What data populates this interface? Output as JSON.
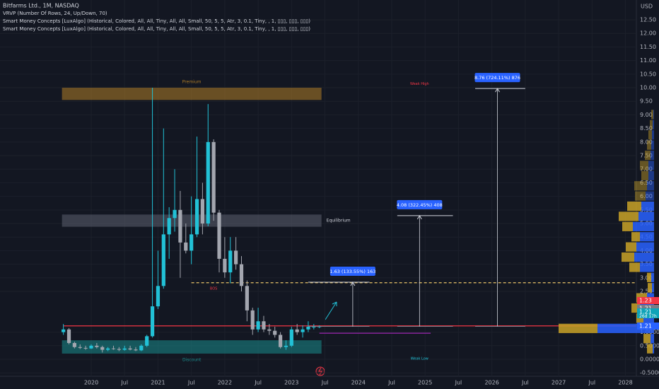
{
  "chart_data": {
    "type": "candlestick",
    "currency": "USD",
    "legend_lines": [
      "Bitfarms Ltd., 1M, NASDAQ",
      "VRVP (Number Of Rows, 24, Up/Down, 70)",
      "Smart Money Concepts [LuxAlgo] (Historical, Colored, All, All, Tiny, All, All, Small, 50, 5, 5, Atr, 3, 0.1, Tiny, , 1, ▯▯▯, ▯▯▯, ▯▯▯)",
      "Smart Money Concepts [LuxAlgo] (Historical, Colored, All, All, Tiny, All, All, Small, 50, 5, 5, Atr, 3, 0.1, Tiny, , 1, ▯▯▯, ▯▯▯, ▯▯▯)"
    ],
    "up_color": "#22c1d6",
    "down_color": "#a3a6af",
    "x": [
      "2019-08",
      "2019-09",
      "2019-10",
      "2019-11",
      "2019-12",
      "2020-01",
      "2020-02",
      "2020-03",
      "2020-04",
      "2020-05",
      "2020-06",
      "2020-07",
      "2020-08",
      "2020-09",
      "2020-10",
      "2020-11",
      "2020-12",
      "2021-01",
      "2021-02",
      "2021-03",
      "2021-04",
      "2021-05",
      "2021-06",
      "2021-07",
      "2021-08",
      "2021-09",
      "2021-10",
      "2021-11",
      "2021-12",
      "2022-01",
      "2022-02",
      "2022-03",
      "2022-04",
      "2022-05",
      "2022-06",
      "2022-07",
      "2022-08",
      "2022-09",
      "2022-10",
      "2022-11",
      "2022-12",
      "2023-01",
      "2023-02",
      "2023-03",
      "2023-04",
      "2023-05",
      "2023-06"
    ],
    "open": [
      1.0,
      1.1,
      0.6,
      0.45,
      0.42,
      0.4,
      0.5,
      0.45,
      0.35,
      0.4,
      0.38,
      0.35,
      0.4,
      0.36,
      0.33,
      0.5,
      0.85,
      1.95,
      2.7,
      4.6,
      5.2,
      5.5,
      4.3,
      4.0,
      4.6,
      5.9,
      5.0,
      8.0,
      5.4,
      3.7,
      3.2,
      4.0,
      3.5,
      2.7,
      1.8,
      1.1,
      1.4,
      1.1,
      1.05,
      0.9,
      0.45,
      0.5,
      1.1,
      1.0,
      1.1,
      1.2,
      1.2
    ],
    "high": [
      1.3,
      1.15,
      0.65,
      0.55,
      0.5,
      0.55,
      0.6,
      0.5,
      0.45,
      0.5,
      0.45,
      0.5,
      0.5,
      0.45,
      0.55,
      0.9,
      10.0,
      4.0,
      8.5,
      5.6,
      7.0,
      6.2,
      5.0,
      6.0,
      8.2,
      6.5,
      9.4,
      8.1,
      5.5,
      4.5,
      4.5,
      4.5,
      3.8,
      2.9,
      1.9,
      1.9,
      1.6,
      1.3,
      1.2,
      1.0,
      0.7,
      1.2,
      1.3,
      1.25,
      1.4,
      1.3,
      1.25
    ],
    "low": [
      0.9,
      0.55,
      0.4,
      0.38,
      0.35,
      0.38,
      0.4,
      0.25,
      0.3,
      0.35,
      0.3,
      0.32,
      0.33,
      0.3,
      0.3,
      0.45,
      0.8,
      1.85,
      2.6,
      3.7,
      4.7,
      3.0,
      3.9,
      3.5,
      4.5,
      4.6,
      4.9,
      5.1,
      3.2,
      3.0,
      2.8,
      3.3,
      2.5,
      1.4,
      0.9,
      1.0,
      1.0,
      0.9,
      0.8,
      0.4,
      0.35,
      0.45,
      0.9,
      0.8,
      1.0,
      1.1,
      1.15
    ],
    "close": [
      1.1,
      0.6,
      0.45,
      0.42,
      0.4,
      0.5,
      0.45,
      0.35,
      0.4,
      0.38,
      0.35,
      0.4,
      0.36,
      0.33,
      0.5,
      0.85,
      1.95,
      2.7,
      4.6,
      5.2,
      5.5,
      4.3,
      4.0,
      4.6,
      5.9,
      5.0,
      8.0,
      5.4,
      3.7,
      3.2,
      4.0,
      3.5,
      2.7,
      1.8,
      1.1,
      1.4,
      1.1,
      1.05,
      0.9,
      0.45,
      0.5,
      1.1,
      1.0,
      1.1,
      1.2,
      1.2,
      1.21
    ],
    "ylim": [
      -0.625,
      13.23
    ],
    "yticks": [
      {
        "value": 12.5,
        "label": "12.50"
      },
      {
        "value": 12,
        "label": "12.00"
      },
      {
        "value": 11.5,
        "label": "11.50"
      },
      {
        "value": 11,
        "label": "11.00"
      },
      {
        "value": 10.5,
        "label": "10.50"
      },
      {
        "value": 10,
        "label": "10.00"
      },
      {
        "value": 9.5,
        "label": "9.50"
      },
      {
        "value": 9,
        "label": "9.00"
      },
      {
        "value": 8.5,
        "label": "8.50"
      },
      {
        "value": 8,
        "label": "8.00"
      },
      {
        "value": 7.5,
        "label": "7.50"
      },
      {
        "value": 7,
        "label": "7.00"
      },
      {
        "value": 6.5,
        "label": "6.50"
      },
      {
        "value": 6,
        "label": "6.00"
      },
      {
        "value": 5.5,
        "label": "5.50"
      },
      {
        "value": 5,
        "label": "5.00"
      },
      {
        "value": 4.5,
        "label": "4.50"
      },
      {
        "value": 4,
        "label": "4.00"
      },
      {
        "value": 3.5,
        "label": "3.50"
      },
      {
        "value": 3,
        "label": "3.00"
      },
      {
        "value": 2.5,
        "label": "2.50"
      },
      {
        "value": 1,
        "label": "1.0000"
      },
      {
        "value": 0.5,
        "label": "0.5000"
      },
      {
        "value": 0,
        "label": "0.0000"
      },
      {
        "value": -0.5,
        "label": "-0.5000"
      }
    ],
    "xticks": [
      {
        "value": "2020-01",
        "label": "2020"
      },
      {
        "value": "2020-07",
        "label": "Jul"
      },
      {
        "value": "2021-01",
        "label": "2021"
      },
      {
        "value": "2021-07",
        "label": "Jul"
      },
      {
        "value": "2022-01",
        "label": "2022"
      },
      {
        "value": "2022-07",
        "label": "Jul"
      },
      {
        "value": "2023-01",
        "label": "2023"
      },
      {
        "value": "2023-07",
        "label": "Jul"
      },
      {
        "value": "2024-01",
        "label": "2024"
      },
      {
        "value": "2024-07",
        "label": "Jul"
      },
      {
        "value": "2025-01",
        "label": "2025"
      },
      {
        "value": "2025-07",
        "label": "Jul"
      },
      {
        "value": "2026-01",
        "label": "2026"
      },
      {
        "value": "2026-07",
        "label": "Jul"
      },
      {
        "value": "2027-01",
        "label": "2027"
      },
      {
        "value": "2027-07",
        "label": "Jul"
      },
      {
        "value": "2028-01",
        "label": "2028"
      }
    ],
    "grid": true,
    "zones": [
      {
        "label": "Premium",
        "low": 9.55,
        "high": 10.0,
        "color": "#b07d26",
        "from": "2019-08",
        "to": "2023-06"
      },
      {
        "label": "Equilibrium",
        "low": 4.88,
        "high": 5.33,
        "color": "#5d6170",
        "from": "2019-08",
        "to": "2023-06"
      },
      {
        "label": "Discount",
        "low": 0.21,
        "high": 0.7,
        "color": "#1a8c8c",
        "from": "2019-08",
        "to": "2023-06"
      }
    ],
    "annotations": [
      {
        "text": "Weak High",
        "value": 10.15,
        "x": "2024-12",
        "color": "#f23645"
      },
      {
        "text": "BOS",
        "value": 2.6,
        "x": "2021-11",
        "color": "#f23645"
      },
      {
        "text": "Weak Low",
        "value": 0.02,
        "x": "2024-12",
        "color": "#22c1d6"
      }
    ],
    "lines": [
      {
        "value": 1.23,
        "color": "#f23645",
        "from": "2019-08",
        "dash": false
      },
      {
        "value": 2.82,
        "color": "#e9c46a",
        "from": "2021-07",
        "dash": true
      },
      {
        "value": 0.96,
        "color": "#9c27b0",
        "from": "2023-06",
        "to": "2025-02",
        "dash": false
      }
    ],
    "projections": [
      {
        "label": "1.63 (133.55%) 163",
        "base": 1.21,
        "target": 2.84,
        "x": "2023-12",
        "from": "2023-04",
        "to": "2024-03"
      },
      {
        "label": "4.08 (322.45%) 408",
        "base": 1.21,
        "target": 5.29,
        "x": "2024-12",
        "from": "2024-08",
        "to": "2025-06"
      },
      {
        "label": "8.76 (724.11%) 876",
        "base": 1.21,
        "target": 9.97,
        "x": "2026-02",
        "from": "2025-10",
        "to": "2026-07"
      }
    ],
    "price_badges": [
      {
        "label": "1.23",
        "color": "#f23645"
      },
      {
        "label": "1.21",
        "color": "#787b86"
      },
      {
        "label": "1.21",
        "color": "#0fa3b8",
        "sub": "26d 17h"
      },
      {
        "label": "1.21",
        "color": "#2962ff"
      }
    ],
    "volume_profile": {
      "bins": [
        0.2,
        0.575,
        0.95,
        1.325,
        1.7,
        2.075,
        2.45,
        2.825,
        3.2,
        3.575,
        3.95,
        4.325,
        4.7,
        5.075,
        5.45,
        5.825,
        6.2,
        6.575,
        6.95,
        7.325,
        7.7,
        8.075,
        8.45,
        8.825,
        9.2
      ],
      "up": [
        2,
        5,
        80,
        15,
        20,
        10,
        3,
        4,
        20,
        28,
        25,
        20,
        30,
        22,
        18,
        12,
        10,
        8,
        8,
        5,
        4,
        3,
        2,
        1
      ],
      "down": [
        8,
        10,
        55,
        10,
        12,
        15,
        6,
        6,
        15,
        18,
        15,
        12,
        15,
        28,
        20,
        15,
        18,
        10,
        12,
        8,
        6,
        5,
        4,
        3
      ],
      "up_color": "#2962ff",
      "down_color": "#c9a227"
    }
  }
}
